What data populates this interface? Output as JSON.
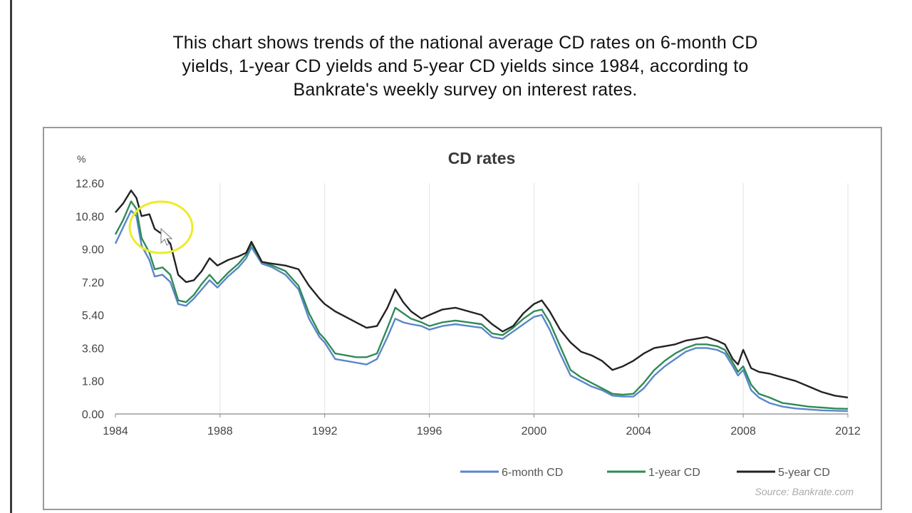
{
  "caption": {
    "line1": "This chart shows trends of the national average CD rates on 6-month CD",
    "line2": "yields, 1-year CD yields and 5-year CD yields since 1984, according to",
    "line3": "Bankrate's weekly survey on interest rates."
  },
  "colors": {
    "six_month": "#5b86c8",
    "one_year": "#2e8b57",
    "five_year": "#222222",
    "grid": "#e3e3e3",
    "axis": "#888888",
    "highlight": "#ecec2a"
  },
  "chart_data": {
    "type": "line",
    "title": "CD rates",
    "ylabel": "%",
    "xlabel": "",
    "ylim": [
      0,
      12.6
    ],
    "xlim": [
      1984,
      2012
    ],
    "y_ticks": [
      "12.60",
      "10.80",
      "9.00",
      "7.20",
      "5.40",
      "3.60",
      "1.80",
      "0.00"
    ],
    "y_tick_values": [
      12.6,
      10.8,
      9.0,
      7.2,
      5.4,
      3.6,
      1.8,
      0.0
    ],
    "x_ticks": [
      "1984",
      "1988",
      "1992",
      "1996",
      "2000",
      "2004",
      "2008",
      "2012"
    ],
    "x_tick_values": [
      1984,
      1988,
      1992,
      1996,
      2000,
      2004,
      2008,
      2012
    ],
    "grid": true,
    "legend_position": "bottom-right",
    "source": "Source: Bankrate.com",
    "series": [
      {
        "name": "6-month CD",
        "color_key": "six_month",
        "x": [
          1984.0,
          1984.3,
          1984.6,
          1984.8,
          1985.0,
          1985.3,
          1985.5,
          1985.8,
          1986.1,
          1986.4,
          1986.7,
          1987.0,
          1987.3,
          1987.6,
          1987.9,
          1988.3,
          1988.7,
          1989.0,
          1989.2,
          1989.6,
          1990.0,
          1990.5,
          1991.0,
          1991.4,
          1991.8,
          1992.0,
          1992.4,
          1992.8,
          1993.2,
          1993.6,
          1994.0,
          1994.4,
          1994.7,
          1995.0,
          1995.3,
          1995.7,
          1996.0,
          1996.5,
          1997.0,
          1997.5,
          1998.0,
          1998.4,
          1998.8,
          1999.2,
          1999.6,
          2000.0,
          2000.3,
          2000.6,
          2001.0,
          2001.4,
          2001.8,
          2002.2,
          2002.6,
          2003.0,
          2003.4,
          2003.8,
          2004.2,
          2004.6,
          2005.0,
          2005.4,
          2005.8,
          2006.2,
          2006.6,
          2007.0,
          2007.3,
          2007.6,
          2007.8,
          2008.0,
          2008.3,
          2008.6,
          2009.0,
          2009.5,
          2010.0,
          2010.5,
          2011.0,
          2011.5,
          2012.0
        ],
        "values": [
          9.3,
          10.2,
          11.1,
          10.8,
          9.2,
          8.4,
          7.5,
          7.6,
          7.2,
          6.0,
          5.9,
          6.3,
          6.8,
          7.3,
          6.9,
          7.5,
          8.0,
          8.5,
          9.1,
          8.2,
          8.0,
          7.6,
          6.8,
          5.2,
          4.2,
          3.9,
          3.0,
          2.9,
          2.8,
          2.7,
          3.0,
          4.2,
          5.2,
          5.0,
          4.9,
          4.8,
          4.6,
          4.8,
          4.9,
          4.8,
          4.7,
          4.2,
          4.1,
          4.5,
          4.9,
          5.3,
          5.4,
          4.6,
          3.3,
          2.1,
          1.8,
          1.5,
          1.3,
          1.0,
          0.95,
          0.95,
          1.4,
          2.1,
          2.6,
          3.0,
          3.4,
          3.6,
          3.6,
          3.5,
          3.3,
          2.6,
          2.1,
          2.4,
          1.3,
          0.9,
          0.6,
          0.4,
          0.3,
          0.25,
          0.2,
          0.18,
          0.16
        ]
      },
      {
        "name": "1-year CD",
        "color_key": "one_year",
        "x": [
          1984.0,
          1984.3,
          1984.6,
          1984.8,
          1985.0,
          1985.3,
          1985.5,
          1985.8,
          1986.1,
          1986.4,
          1986.7,
          1987.0,
          1987.3,
          1987.6,
          1987.9,
          1988.3,
          1988.7,
          1989.0,
          1989.2,
          1989.6,
          1990.0,
          1990.5,
          1991.0,
          1991.4,
          1991.8,
          1992.0,
          1992.4,
          1992.8,
          1993.2,
          1993.6,
          1994.0,
          1994.4,
          1994.7,
          1995.0,
          1995.3,
          1995.7,
          1996.0,
          1996.5,
          1997.0,
          1997.5,
          1998.0,
          1998.4,
          1998.8,
          1999.2,
          1999.6,
          2000.0,
          2000.3,
          2000.6,
          2001.0,
          2001.4,
          2001.8,
          2002.2,
          2002.6,
          2003.0,
          2003.4,
          2003.8,
          2004.2,
          2004.6,
          2005.0,
          2005.4,
          2005.8,
          2006.2,
          2006.6,
          2007.0,
          2007.3,
          2007.6,
          2007.8,
          2008.0,
          2008.3,
          2008.6,
          2009.0,
          2009.5,
          2010.0,
          2010.5,
          2011.0,
          2011.5,
          2012.0
        ],
        "values": [
          9.8,
          10.6,
          11.6,
          11.2,
          9.6,
          8.8,
          7.9,
          8.0,
          7.6,
          6.2,
          6.1,
          6.5,
          7.1,
          7.6,
          7.1,
          7.7,
          8.2,
          8.7,
          9.3,
          8.3,
          8.1,
          7.8,
          7.0,
          5.5,
          4.4,
          4.1,
          3.3,
          3.2,
          3.1,
          3.1,
          3.3,
          4.7,
          5.8,
          5.5,
          5.2,
          5.0,
          4.8,
          5.0,
          5.1,
          5.0,
          4.9,
          4.4,
          4.3,
          4.7,
          5.2,
          5.6,
          5.7,
          5.0,
          3.7,
          2.4,
          2.0,
          1.7,
          1.4,
          1.1,
          1.05,
          1.1,
          1.7,
          2.4,
          2.9,
          3.3,
          3.6,
          3.8,
          3.8,
          3.7,
          3.5,
          2.8,
          2.3,
          2.6,
          1.6,
          1.1,
          0.9,
          0.6,
          0.5,
          0.4,
          0.35,
          0.3,
          0.28
        ]
      },
      {
        "name": "5-year CD",
        "color_key": "five_year",
        "x": [
          1984.0,
          1984.3,
          1984.6,
          1984.8,
          1985.0,
          1985.3,
          1985.5,
          1985.8,
          1986.1,
          1986.4,
          1986.7,
          1987.0,
          1987.3,
          1987.6,
          1987.9,
          1988.3,
          1988.7,
          1989.0,
          1989.2,
          1989.6,
          1990.0,
          1990.5,
          1991.0,
          1991.4,
          1991.8,
          1992.0,
          1992.4,
          1992.8,
          1993.2,
          1993.6,
          1994.0,
          1994.4,
          1994.7,
          1995.0,
          1995.3,
          1995.7,
          1996.0,
          1996.5,
          1997.0,
          1997.5,
          1998.0,
          1998.4,
          1998.8,
          1999.2,
          1999.6,
          2000.0,
          2000.3,
          2000.6,
          2001.0,
          2001.4,
          2001.8,
          2002.2,
          2002.6,
          2003.0,
          2003.4,
          2003.8,
          2004.2,
          2004.6,
          2005.0,
          2005.4,
          2005.8,
          2006.2,
          2006.6,
          2007.0,
          2007.3,
          2007.6,
          2007.8,
          2008.0,
          2008.3,
          2008.6,
          2009.0,
          2009.5,
          2010.0,
          2010.5,
          2011.0,
          2011.5,
          2012.0
        ],
        "values": [
          11.0,
          11.5,
          12.2,
          11.8,
          10.8,
          10.9,
          10.1,
          9.8,
          9.3,
          7.6,
          7.2,
          7.3,
          7.8,
          8.5,
          8.1,
          8.4,
          8.6,
          8.8,
          9.4,
          8.3,
          8.2,
          8.1,
          7.9,
          7.0,
          6.3,
          6.0,
          5.6,
          5.3,
          5.0,
          4.7,
          4.8,
          5.8,
          6.8,
          6.1,
          5.6,
          5.2,
          5.4,
          5.7,
          5.8,
          5.6,
          5.4,
          4.9,
          4.5,
          4.8,
          5.5,
          6.0,
          6.2,
          5.6,
          4.6,
          3.9,
          3.4,
          3.2,
          2.9,
          2.4,
          2.6,
          2.9,
          3.3,
          3.6,
          3.7,
          3.8,
          4.0,
          4.1,
          4.2,
          4.0,
          3.8,
          3.0,
          2.7,
          3.5,
          2.5,
          2.3,
          2.2,
          2.0,
          1.8,
          1.5,
          1.2,
          1.0,
          0.9
        ]
      }
    ]
  }
}
